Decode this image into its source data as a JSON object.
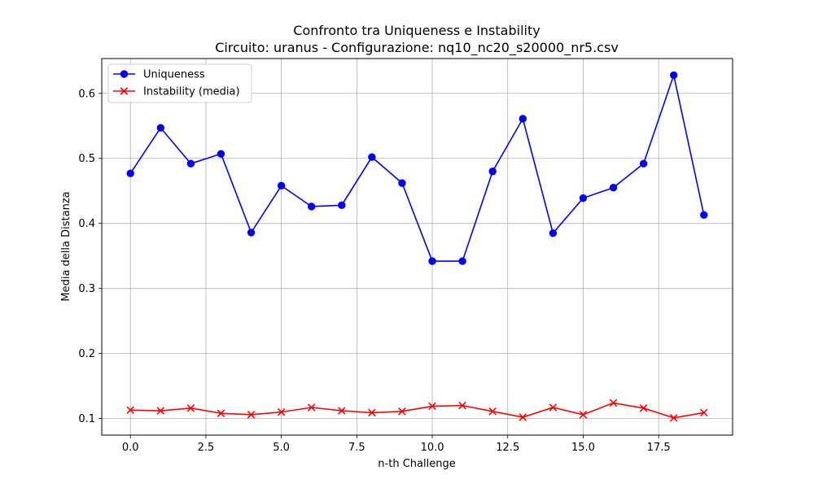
{
  "chart_data": {
    "type": "line",
    "title": "Confronto tra Uniqueness e Instability",
    "subtitle": "Circuito: uranus - Configurazione: nq10_nc20_s20000_nr5.csv",
    "xlabel": "n-th Challenge",
    "ylabel": "Media della Distanza",
    "x": [
      0,
      1,
      2,
      3,
      4,
      5,
      6,
      7,
      8,
      9,
      10,
      11,
      12,
      13,
      14,
      15,
      16,
      17,
      18,
      19
    ],
    "xlim": [
      -0.95,
      19.95
    ],
    "ylim": [
      0.0745,
      0.6535
    ],
    "xticks": [
      0.0,
      2.5,
      5.0,
      7.5,
      10.0,
      12.5,
      15.0,
      17.5
    ],
    "xtick_labels": [
      "0.0",
      "2.5",
      "5.0",
      "7.5",
      "10.0",
      "12.5",
      "15.0",
      "17.5"
    ],
    "yticks": [
      0.1,
      0.2,
      0.3,
      0.4,
      0.5,
      0.6
    ],
    "ytick_labels": [
      "0.1",
      "0.2",
      "0.3",
      "0.4",
      "0.5",
      "0.6"
    ],
    "grid": true,
    "legend_position": "top-left",
    "series": [
      {
        "name": "Uniqueness",
        "color": "#0000ff",
        "marker": "circle",
        "values": [
          0.477,
          0.547,
          0.492,
          0.507,
          0.386,
          0.458,
          0.426,
          0.428,
          0.502,
          0.462,
          0.342,
          0.342,
          0.48,
          0.561,
          0.385,
          0.439,
          0.455,
          0.492,
          0.628,
          0.413
        ]
      },
      {
        "name": "Instability (media)",
        "color": "#ff0000",
        "marker": "x",
        "values": [
          0.113,
          0.112,
          0.116,
          0.108,
          0.106,
          0.11,
          0.117,
          0.112,
          0.109,
          0.111,
          0.119,
          0.12,
          0.111,
          0.102,
          0.117,
          0.106,
          0.124,
          0.116,
          0.101,
          0.109
        ]
      }
    ]
  }
}
